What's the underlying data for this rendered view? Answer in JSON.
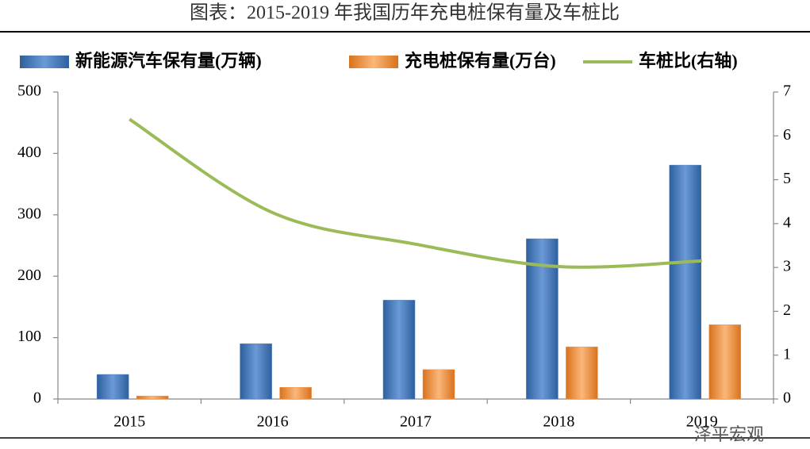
{
  "chart_data": {
    "type": "bar",
    "title": "图表：2015-2019 年我国历年充电桩保有量及车桩比",
    "categories": [
      "2015",
      "2016",
      "2017",
      "2018",
      "2019"
    ],
    "series": [
      {
        "name": "新能源汽车保有量(万辆)",
        "color": "#4f81bd",
        "type": "bar",
        "values": [
          40,
          90,
          161,
          261,
          381
        ]
      },
      {
        "name": "充电桩保有量(万台)",
        "color": "#f79646",
        "type": "bar",
        "values": [
          5,
          19,
          48,
          85,
          121
        ]
      },
      {
        "name": "车桩比(右轴)",
        "color": "#9bbb59",
        "type": "line",
        "axis": "y2",
        "values": [
          6.38,
          4.25,
          3.53,
          3.02,
          3.15
        ]
      }
    ],
    "ylim": [
      0,
      500
    ],
    "yticks": [
      0,
      100,
      200,
      300,
      400,
      500
    ],
    "y2lim": [
      0,
      7
    ],
    "y2ticks": [
      0,
      1,
      2,
      3,
      4,
      5,
      6,
      7
    ],
    "grid": false,
    "legend": "top",
    "annotations": [
      "泽平宏观"
    ]
  }
}
